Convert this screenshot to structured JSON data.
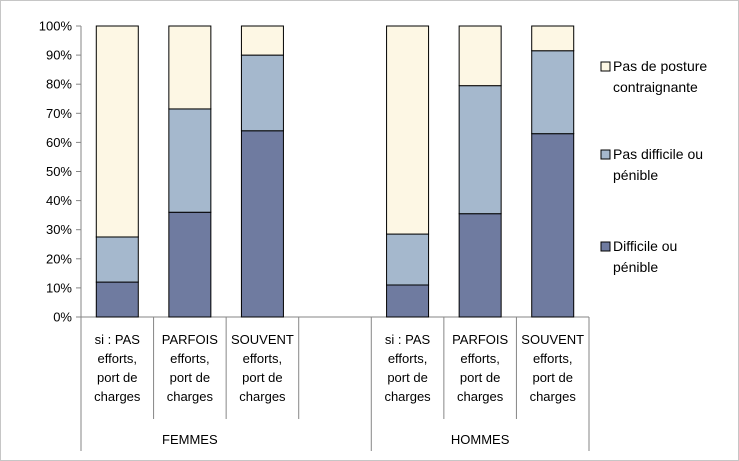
{
  "chart_data": {
    "type": "bar",
    "stacked": true,
    "percent_stacked": true,
    "ylim": [
      0,
      100
    ],
    "yticks": [
      0,
      10,
      20,
      30,
      40,
      50,
      60,
      70,
      80,
      90,
      100
    ],
    "ytick_labels": [
      "0%",
      "10%",
      "20%",
      "30%",
      "40%",
      "50%",
      "60%",
      "70%",
      "80%",
      "90%",
      "100%"
    ],
    "grid": false,
    "legend_position": "right",
    "groups": [
      {
        "label": "FEMMES",
        "categories": [
          {
            "lines": [
              "si : PAS",
              "efforts,",
              "port de",
              "charges"
            ]
          },
          {
            "lines": [
              "PARFOIS",
              "efforts,",
              "port de",
              "charges"
            ]
          },
          {
            "lines": [
              "SOUVENT",
              "efforts,",
              "port de",
              "charges"
            ]
          }
        ]
      },
      {
        "label": "HOMMES",
        "categories": [
          {
            "lines": [
              "si : PAS",
              "efforts,",
              "port de",
              "charges"
            ]
          },
          {
            "lines": [
              "PARFOIS",
              "efforts,",
              "port de",
              "charges"
            ]
          },
          {
            "lines": [
              "SOUVENT",
              "efforts,",
              "port de",
              "charges"
            ]
          }
        ]
      }
    ],
    "series": [
      {
        "name": "Difficile ou pénible",
        "legend_lines": [
          "Difficile ou",
          "pénible"
        ],
        "color": "#6f7ba0",
        "values": [
          12,
          36,
          64,
          11,
          35.5,
          63
        ]
      },
      {
        "name": "Pas difficile ou pénible",
        "legend_lines": [
          "Pas difficile ou",
          "pénible"
        ],
        "color": "#a5b8cd",
        "values": [
          15.5,
          35.5,
          26,
          17.5,
          44,
          28.5
        ]
      },
      {
        "name": "Pas de posture contraignante",
        "legend_lines": [
          "Pas de posture",
          "contraignante"
        ],
        "color": "#fdf7e4",
        "values": [
          72.5,
          28.5,
          10,
          71.5,
          20.5,
          8.5
        ]
      }
    ]
  }
}
